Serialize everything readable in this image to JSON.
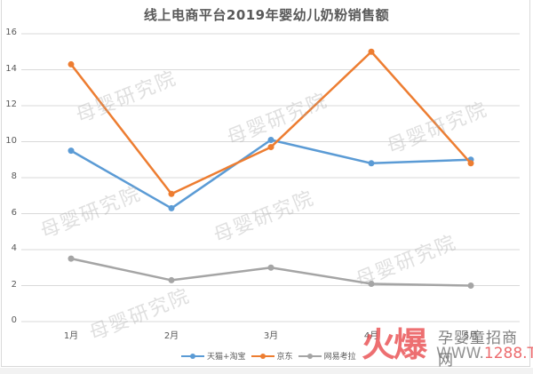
{
  "chart_data": {
    "type": "line",
    "title": "线上电商平台2019年婴幼儿奶粉销售额",
    "xlabel": "",
    "ylabel": "",
    "categories": [
      "1月",
      "2月",
      "3月",
      "4月",
      "5月"
    ],
    "series": [
      {
        "name": "天猫+淘宝",
        "color": "#5b9bd5",
        "values": [
          9.5,
          6.3,
          10.1,
          8.8,
          9.0
        ]
      },
      {
        "name": "京东",
        "color": "#ed7d31",
        "values": [
          14.3,
          7.1,
          9.7,
          15.0,
          8.8
        ]
      },
      {
        "name": "网易考拉",
        "color": "#a5a5a5",
        "values": [
          3.5,
          2.3,
          3.0,
          2.1,
          2.0
        ]
      }
    ],
    "ylim": [
      0,
      16
    ],
    "yticks": [
      0,
      2,
      4,
      6,
      8,
      10,
      12,
      14,
      16
    ],
    "grid": true,
    "legend_position": "bottom"
  },
  "chart": {
    "title": "线上电商平台2019年婴幼儿奶粉销售额",
    "yticks": [
      "16",
      "14",
      "12",
      "10",
      "8",
      "6",
      "4",
      "2",
      "0"
    ],
    "xticks": [
      "1月",
      "2月",
      "3月",
      "4月",
      "5月"
    ],
    "legend": [
      "天猫+淘宝",
      "京东",
      "网易考拉"
    ],
    "gridline_color": "#d9d9d9"
  },
  "watermarks": {
    "text": "母婴研究院"
  },
  "brand": {
    "big": "火爆",
    "name": "孕婴童招商网",
    "url_prefix": "WWW.",
    "url_num": "1288",
    "url_suffix": ".TV"
  }
}
